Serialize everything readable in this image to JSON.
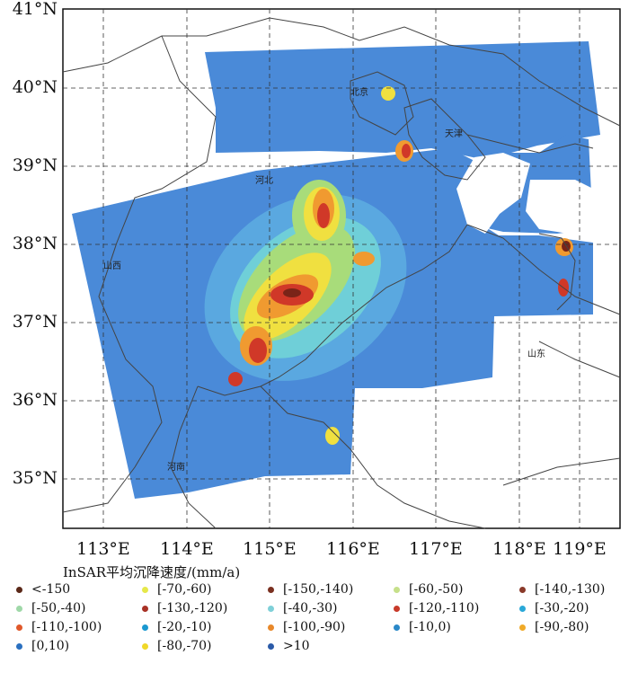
{
  "lat_labels": [
    "41°N",
    "40°N",
    "39°N",
    "38°N",
    "37°N",
    "36°N",
    "35°N"
  ],
  "lon_labels": [
    "113°E",
    "114°E",
    "115°E",
    "116°E",
    "117°E",
    "118°E",
    "119°E"
  ],
  "provinces": {
    "beijing": "北京",
    "tianjin": "天津",
    "hebei": "河北",
    "shanxi": "山西",
    "shandong": "山东",
    "henan": "河南"
  },
  "legend": {
    "title": "InSAR平均沉降速度/(mm/a)",
    "items": [
      {
        "label": "<-150",
        "color": "#5a2818"
      },
      {
        "label": "[-70,-60)",
        "color": "#e6e84a"
      },
      {
        "label": "[-150,-140)",
        "color": "#7a3020"
      },
      {
        "label": "[-60,-50)",
        "color": "#c6e08a"
      },
      {
        "label": "[-140,-130)",
        "color": "#8a3a2a"
      },
      {
        "label": "[-50,-40)",
        "color": "#9fd8a8"
      },
      {
        "label": "[-130,-120)",
        "color": "#a83226"
      },
      {
        "label": "[-40,-30)",
        "color": "#7fd0d8"
      },
      {
        "label": "[-120,-110)",
        "color": "#c83a2a"
      },
      {
        "label": "[-30,-20)",
        "color": "#2aa8d8"
      },
      {
        "label": "[-110,-100)",
        "color": "#e0582a"
      },
      {
        "label": "[-20,-10)",
        "color": "#1a98d0"
      },
      {
        "label": "[-100,-90)",
        "color": "#e8882a"
      },
      {
        "label": "[-10,0)",
        "color": "#2a88c8"
      },
      {
        "label": "[-90,-80)",
        "color": "#f0aa28"
      },
      {
        "label": "[0,10)",
        "color": "#2a70c0"
      },
      {
        "label": "[-80,-70)",
        "color": "#f0d828"
      },
      {
        "label": ">10",
        "color": "#2a5aa8"
      }
    ]
  },
  "colors": {
    "background_blue": "#3f7fd6",
    "mid_blue": "#5aa8e0",
    "cyan": "#6fcfd8",
    "green": "#a8dc7a",
    "yellow": "#f0e040",
    "orange": "#f09a30",
    "red": "#d03828",
    "dark_red": "#7a2418"
  }
}
